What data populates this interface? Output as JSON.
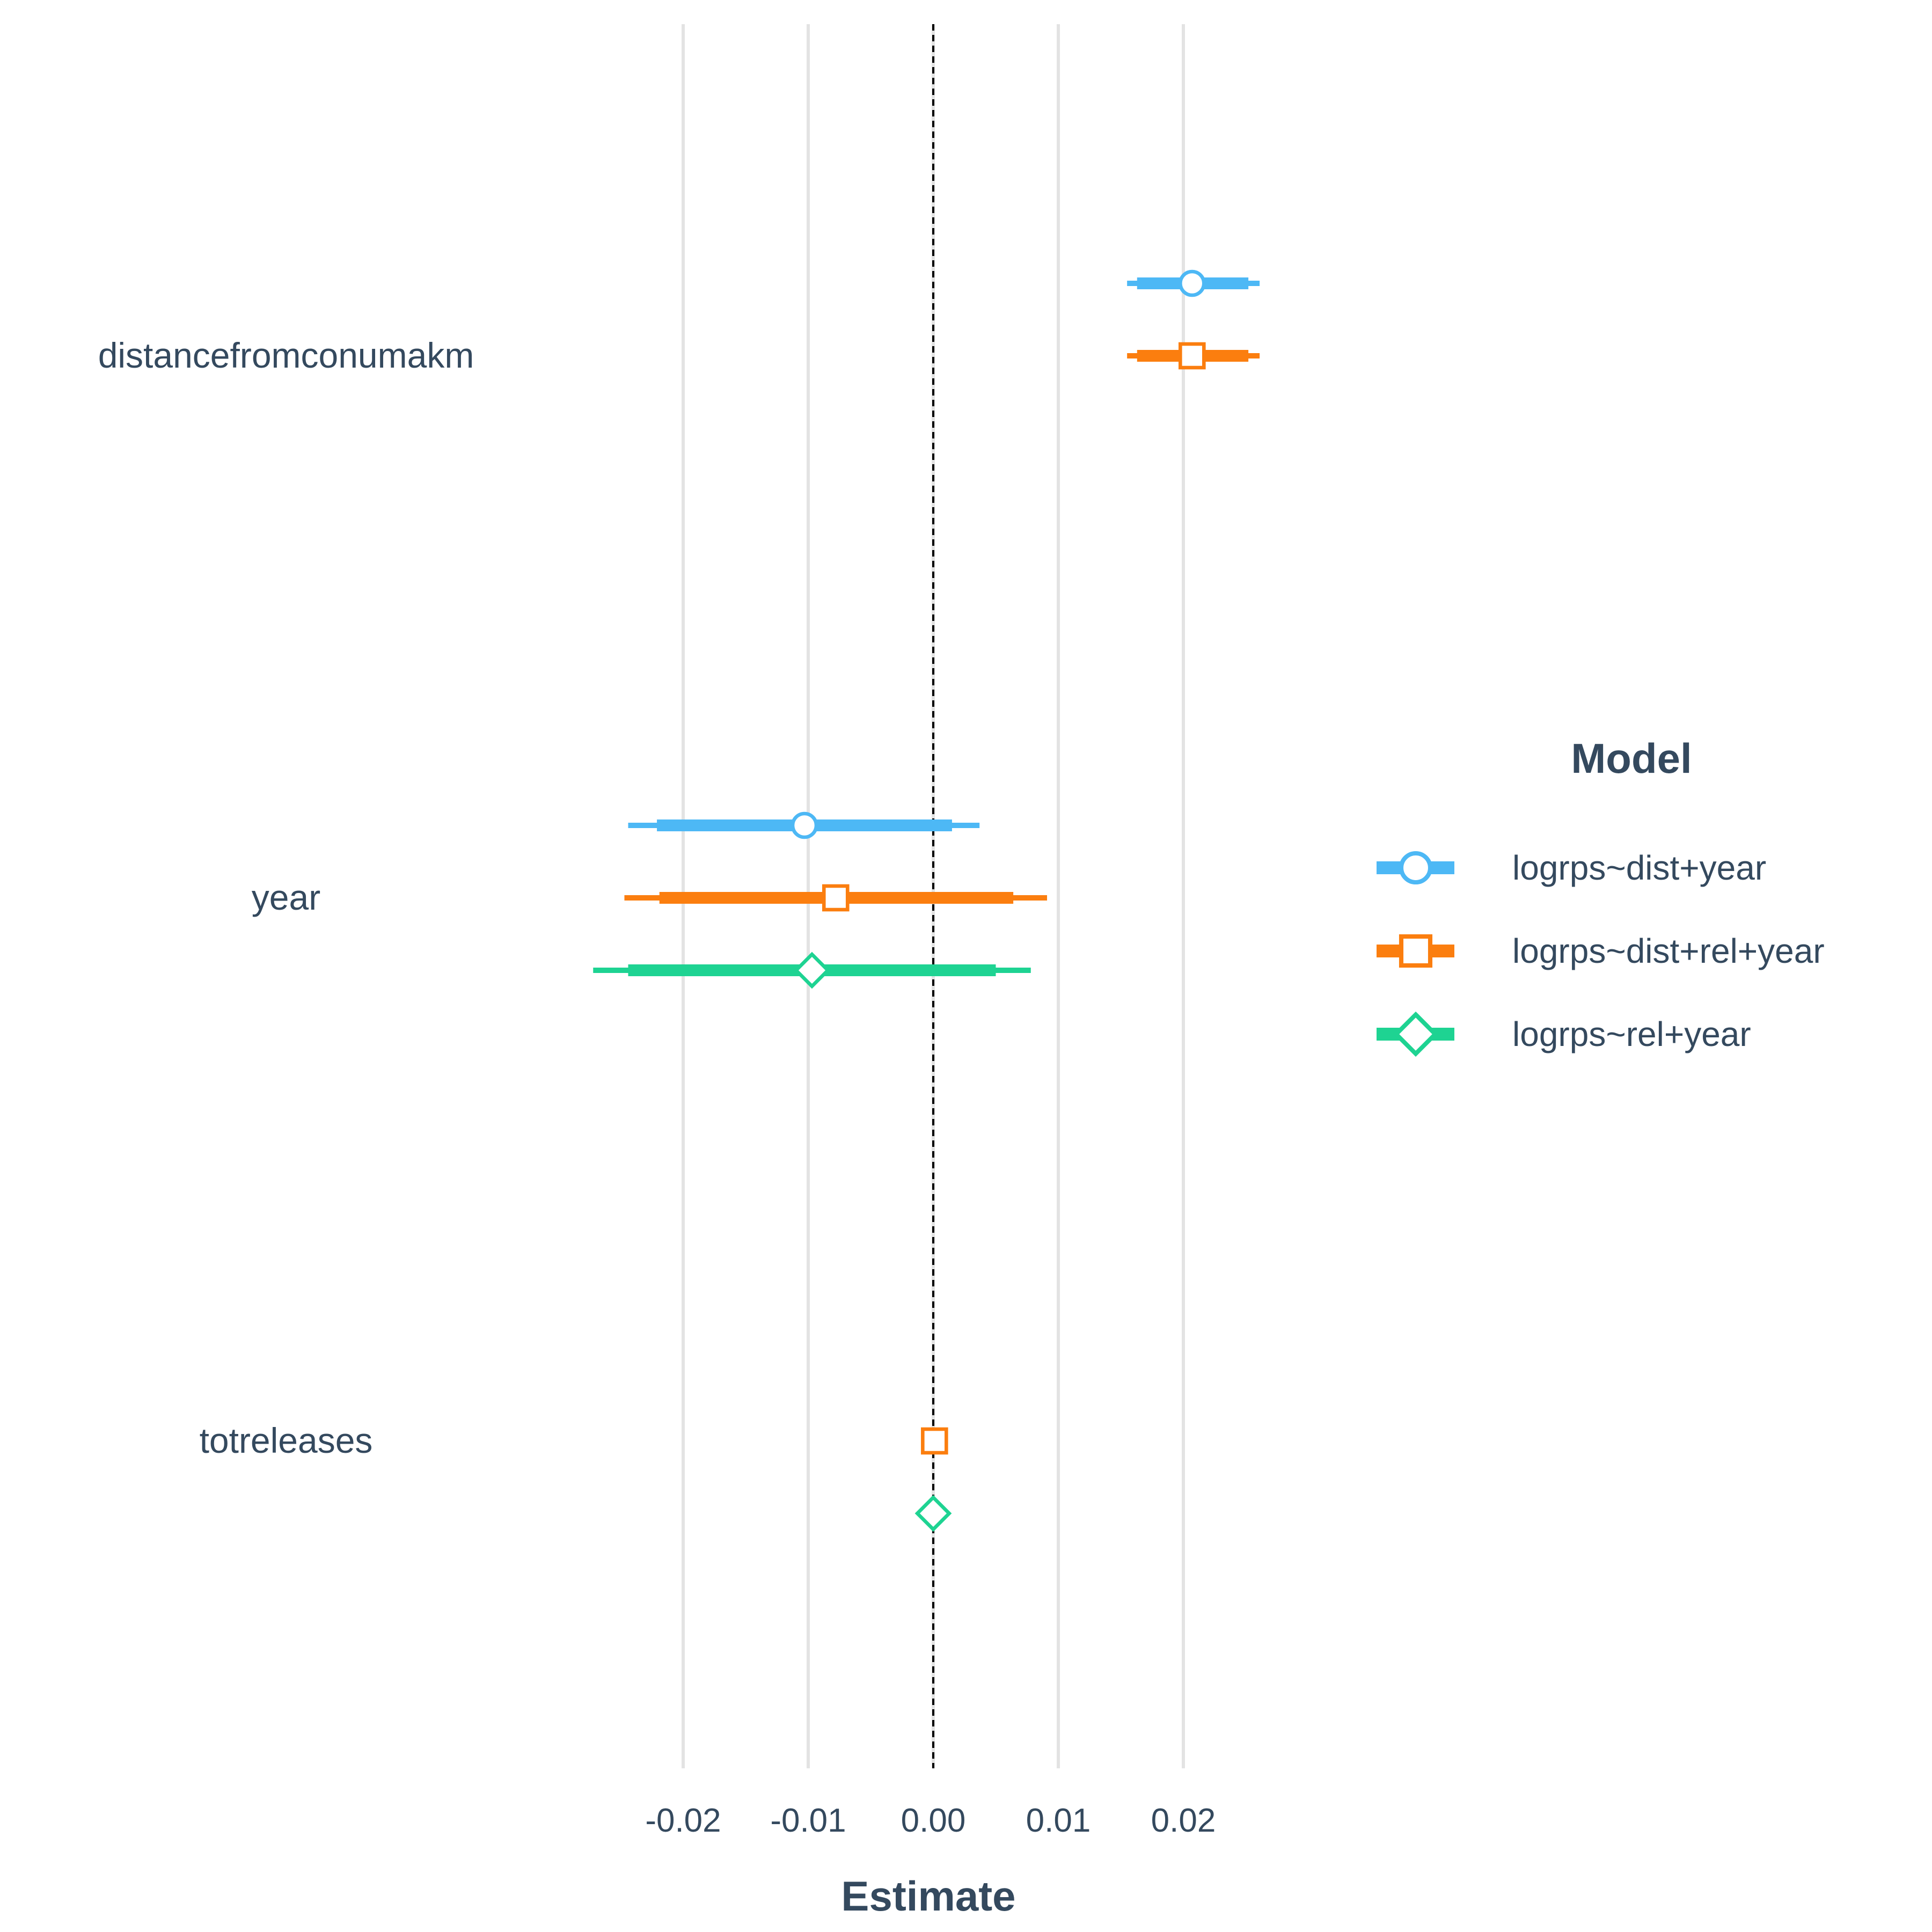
{
  "chart_data": {
    "type": "coefficient-plot",
    "xlabel": "Estimate",
    "ylabel": "",
    "xlim": [
      -0.03,
      0.0265
    ],
    "xticks": [
      -0.02,
      -0.01,
      0.0,
      0.01,
      0.02
    ],
    "xtick_labels": [
      "-0.02",
      "-0.01",
      "0.00",
      "0.01",
      "0.02"
    ],
    "reference_line": 0,
    "grid": "vertical major gridlines",
    "terms": [
      "distancefromconumakm",
      "year",
      "totreleases"
    ],
    "legend": {
      "title": "Model",
      "position": "right"
    },
    "series": [
      {
        "name": "logrps~dist+year",
        "color": "#4db8f5",
        "marker": "circle",
        "points": [
          {
            "term": "distancefromconumakm",
            "estimate": 0.0207,
            "inner": [
              0.0163,
              0.0252
            ],
            "outer": [
              0.0155,
              0.0261
            ]
          },
          {
            "term": "year",
            "estimate": -0.0103,
            "inner": [
              -0.0221,
              0.0015
            ],
            "outer": [
              -0.0244,
              0.0037
            ]
          }
        ]
      },
      {
        "name": "logrps~dist+rel+year",
        "color": "#fb7e0f",
        "marker": "square",
        "points": [
          {
            "term": "distancefromconumakm",
            "estimate": 0.0207,
            "inner": [
              0.0163,
              0.0252
            ],
            "outer": [
              0.0155,
              0.0261
            ]
          },
          {
            "term": "year",
            "estimate": -0.0078,
            "inner": [
              -0.0219,
              0.0064
            ],
            "outer": [
              -0.0247,
              0.0091
            ]
          },
          {
            "term": "totreleases",
            "estimate": 0.0001,
            "inner": [
              0.0001,
              0.0001
            ],
            "outer": [
              0.0001,
              0.0001
            ]
          }
        ]
      },
      {
        "name": "logrps~rel+year",
        "color": "#1ed392",
        "marker": "diamond",
        "points": [
          {
            "term": "year",
            "estimate": -0.0097,
            "inner": [
              -0.0244,
              0.005
            ],
            "outer": [
              -0.0272,
              0.0078
            ]
          },
          {
            "term": "totreleases",
            "estimate": 0.0,
            "inner": [
              0.0,
              0.0
            ],
            "outer": [
              0.0,
              0.0
            ]
          }
        ]
      }
    ]
  }
}
